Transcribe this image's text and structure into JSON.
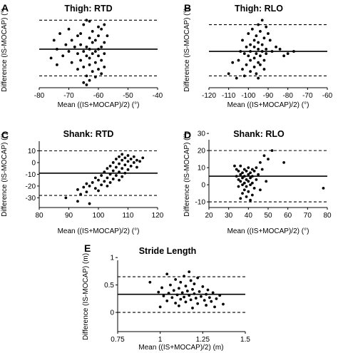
{
  "colors": {
    "points": "#000000",
    "axis": "#000000",
    "mean_line": "#000000",
    "loa_line": "#000000",
    "background": "#ffffff"
  },
  "chart_data": [
    {
      "panel": "A",
      "type": "scatter",
      "title": "Thigh: RTD",
      "xlabel": "Mean ((IS+MOCAP)/2) (°)",
      "ylabel": "Difference (IS-MOCAP) (°)",
      "xlim": [
        -80,
        -40
      ],
      "ylim": [
        -13.3,
        20.3
      ],
      "x_ticks": [
        "-80",
        "-70",
        "-60",
        "-50",
        "-40"
      ],
      "x_tick_values": [
        -80,
        -70,
        -60,
        -50,
        -40
      ],
      "y_ticks": [],
      "y_tick_values": [],
      "mean_line": 4,
      "loa_upper": 17,
      "loa_lower": -8,
      "points": [
        [
          -64,
          17
        ],
        [
          -63,
          16.5
        ],
        [
          -65,
          15
        ],
        [
          -58,
          15
        ],
        [
          -60,
          14
        ],
        [
          -70,
          13
        ],
        [
          -59,
          13
        ],
        [
          -62,
          12
        ],
        [
          -66,
          11
        ],
        [
          -73,
          11
        ],
        [
          -60,
          10
        ],
        [
          -57,
          10
        ],
        [
          -67,
          10
        ],
        [
          -63,
          9
        ],
        [
          -61,
          8
        ],
        [
          -69,
          8
        ],
        [
          -75,
          8
        ],
        [
          -58,
          7
        ],
        [
          -62,
          7
        ],
        [
          -66,
          6
        ],
        [
          -71,
          6
        ],
        [
          -64,
          5
        ],
        [
          -59,
          5
        ],
        [
          -68,
          5
        ],
        [
          -60,
          4
        ],
        [
          -63,
          4
        ],
        [
          -74,
          4
        ],
        [
          -61,
          3
        ],
        [
          -65,
          3
        ],
        [
          -70,
          3
        ],
        [
          -58,
          2
        ],
        [
          -62,
          2
        ],
        [
          -67,
          2
        ],
        [
          -72,
          1
        ],
        [
          -60,
          1
        ],
        [
          -64,
          1
        ],
        [
          -76,
          0
        ],
        [
          -63,
          0
        ],
        [
          -59,
          -1
        ],
        [
          -66,
          -1
        ],
        [
          -61,
          -2
        ],
        [
          -69,
          -2
        ],
        [
          -74,
          -3
        ],
        [
          -63,
          -3
        ],
        [
          -58,
          -4
        ],
        [
          -65,
          -4
        ],
        [
          -60,
          -5
        ],
        [
          -67,
          -5
        ],
        [
          -62,
          -6
        ],
        [
          -59,
          -7
        ],
        [
          -64,
          -8
        ],
        [
          -61,
          -8.5
        ],
        [
          -63,
          -10
        ],
        [
          -65,
          -11
        ],
        [
          -64,
          -12
        ]
      ]
    },
    {
      "panel": "B",
      "type": "scatter",
      "title": "Thigh: RLO",
      "xlabel": "Mean ((IS+MOCAP)/2) (°)",
      "ylabel": "Difference (IS-MOCAP) (°)",
      "xlim": [
        -120,
        -60
      ],
      "ylim": [
        -13.3,
        20.3
      ],
      "x_ticks": [
        "-120",
        "-110",
        "-100",
        "-90",
        "-80",
        "-70",
        "-60"
      ],
      "x_tick_values": [
        -120,
        -110,
        -100,
        -90,
        -80,
        -70,
        -60
      ],
      "y_ticks": [],
      "y_tick_values": [],
      "mean_line": 3,
      "loa_upper": 15,
      "loa_lower": -8,
      "points": [
        [
          -93,
          17
        ],
        [
          -95,
          15
        ],
        [
          -91,
          14
        ],
        [
          -98,
          13
        ],
        [
          -94,
          12
        ],
        [
          -100,
          11
        ],
        [
          -90,
          11
        ],
        [
          -96,
          10
        ],
        [
          -92,
          9
        ],
        [
          -103,
          8
        ],
        [
          -97,
          8
        ],
        [
          -89,
          8
        ],
        [
          -95,
          7
        ],
        [
          -99,
          6
        ],
        [
          -93,
          6
        ],
        [
          -86,
          5
        ],
        [
          -101,
          5
        ],
        [
          -97,
          5
        ],
        [
          -91,
          4
        ],
        [
          -95,
          4
        ],
        [
          -104,
          3
        ],
        [
          -99,
          3
        ],
        [
          -93,
          3
        ],
        [
          -88,
          3
        ],
        [
          -96,
          2
        ],
        [
          -102,
          2
        ],
        [
          -91,
          2
        ],
        [
          -100,
          1
        ],
        [
          -94,
          1
        ],
        [
          -97,
          0
        ],
        [
          -105,
          -1
        ],
        [
          -92,
          -1
        ],
        [
          -99,
          -1
        ],
        [
          -95,
          -2
        ],
        [
          -108,
          -2
        ],
        [
          -101,
          -3
        ],
        [
          -94,
          -3
        ],
        [
          -97,
          -4
        ],
        [
          -103,
          -5
        ],
        [
          -92,
          -5
        ],
        [
          -99,
          -6
        ],
        [
          -110,
          -7
        ],
        [
          -96,
          -7
        ],
        [
          -102,
          -8
        ],
        [
          -106,
          -9
        ],
        [
          -95,
          -9
        ],
        [
          -80,
          2
        ],
        [
          -77,
          3
        ],
        [
          -82,
          1
        ],
        [
          -84,
          4
        ]
      ]
    },
    {
      "panel": "C",
      "type": "scatter",
      "title": "Shank: RTD",
      "xlabel": "Mean ((IS+MOCAP)/2) (°)",
      "ylabel": "Difference (IS-MOCAP) (°)",
      "xlim": [
        80,
        120
      ],
      "ylim": [
        -38.3,
        18.2
      ],
      "x_ticks": [
        "80",
        "90",
        "100",
        "110",
        "120"
      ],
      "x_tick_values": [
        80,
        90,
        100,
        110,
        120
      ],
      "y_ticks": [
        "10",
        "0",
        "-10",
        "-20",
        "-30"
      ],
      "y_tick_values": [
        10,
        0,
        -10,
        -20,
        -30
      ],
      "mean_line": -9,
      "loa_upper": 10,
      "loa_lower": -28,
      "points": [
        [
          108,
          7
        ],
        [
          110,
          6
        ],
        [
          107,
          5
        ],
        [
          112,
          5
        ],
        [
          109,
          4
        ],
        [
          111,
          3
        ],
        [
          106,
          3
        ],
        [
          113,
          2
        ],
        [
          108,
          2
        ],
        [
          110,
          1
        ],
        [
          105,
          0
        ],
        [
          112,
          0
        ],
        [
          107,
          -1
        ],
        [
          109,
          -2
        ],
        [
          104,
          -3
        ],
        [
          111,
          -3
        ],
        [
          106,
          -4
        ],
        [
          108,
          -5
        ],
        [
          103,
          -5
        ],
        [
          110,
          -6
        ],
        [
          105,
          -7
        ],
        [
          107,
          -8
        ],
        [
          102,
          -8
        ],
        [
          109,
          -9
        ],
        [
          104,
          -10
        ],
        [
          106,
          -11
        ],
        [
          101,
          -11
        ],
        [
          108,
          -12
        ],
        [
          103,
          -13
        ],
        [
          99,
          -13
        ],
        [
          105,
          -14
        ],
        [
          100,
          -15
        ],
        [
          107,
          -15
        ],
        [
          102,
          -16
        ],
        [
          98,
          -17
        ],
        [
          104,
          -17
        ],
        [
          96,
          -18
        ],
        [
          101,
          -19
        ],
        [
          97,
          -20
        ],
        [
          103,
          -20
        ],
        [
          95,
          -21
        ],
        [
          99,
          -22
        ],
        [
          93,
          -23
        ],
        [
          100,
          -24
        ],
        [
          96,
          -25
        ],
        [
          94,
          -27
        ],
        [
          89,
          -30
        ],
        [
          93,
          -33
        ],
        [
          97,
          -35
        ],
        [
          115,
          4
        ],
        [
          114,
          1
        ],
        [
          113,
          -4
        ]
      ]
    },
    {
      "panel": "D",
      "type": "scatter",
      "title": "Shank: RLO",
      "xlabel": "Mean ((IS+MOCAP)/2) (°)",
      "ylabel": "Difference (IS-MOCAP) (°)",
      "xlim": [
        20,
        80
      ],
      "ylim": [
        -13.3,
        26.3
      ],
      "x_ticks": [
        "20",
        "30",
        "40",
        "50",
        "60",
        "70",
        "80"
      ],
      "x_tick_values": [
        20,
        30,
        40,
        50,
        60,
        70,
        80
      ],
      "y_ticks": [
        "30",
        "20",
        "10",
        "0",
        "-10"
      ],
      "y_tick_values": [
        30,
        20,
        10,
        0,
        -10
      ],
      "mean_line": 5,
      "loa_upper": 20,
      "loa_lower": -10,
      "points": [
        [
          52,
          20
        ],
        [
          48,
          17
        ],
        [
          50,
          15
        ],
        [
          46,
          13
        ],
        [
          58,
          13
        ],
        [
          33,
          11
        ],
        [
          36,
          11
        ],
        [
          40,
          10
        ],
        [
          44,
          10
        ],
        [
          34,
          9
        ],
        [
          38,
          9
        ],
        [
          42,
          9
        ],
        [
          47,
          9
        ],
        [
          35,
          8
        ],
        [
          39,
          8
        ],
        [
          43,
          8
        ],
        [
          37,
          7
        ],
        [
          41,
          7
        ],
        [
          36,
          6
        ],
        [
          40,
          6
        ],
        [
          45,
          6
        ],
        [
          34,
          5
        ],
        [
          38,
          5
        ],
        [
          42,
          5
        ],
        [
          37,
          4
        ],
        [
          41,
          4
        ],
        [
          35,
          3
        ],
        [
          39,
          3
        ],
        [
          44,
          3
        ],
        [
          36,
          2
        ],
        [
          40,
          2
        ],
        [
          38,
          1
        ],
        [
          42,
          1
        ],
        [
          37,
          0
        ],
        [
          41,
          0
        ],
        [
          35,
          -1
        ],
        [
          39,
          -1
        ],
        [
          43,
          -2
        ],
        [
          38,
          -3
        ],
        [
          40,
          -4
        ],
        [
          37,
          -5
        ],
        [
          42,
          -6
        ],
        [
          39,
          -7
        ],
        [
          36,
          -8
        ],
        [
          41,
          -9
        ],
        [
          49,
          2
        ],
        [
          46,
          -3
        ],
        [
          78,
          -2
        ]
      ]
    },
    {
      "panel": "E",
      "type": "scatter",
      "title": "Stride Length",
      "xlabel": "Mean ((IS+MOCAP)/2) (m)",
      "ylabel": "Difference (IS-MOCAP) (m)",
      "xlim": [
        0.75,
        1.5
      ],
      "ylim": [
        -0.35,
        0.95
      ],
      "x_ticks": [
        "0.75",
        "1",
        "1.25",
        "1.5"
      ],
      "x_tick_values": [
        0.75,
        1,
        1.25,
        1.5
      ],
      "y_ticks": [
        "1",
        "0.5",
        "0"
      ],
      "y_tick_values": [
        1,
        0.5,
        0
      ],
      "mean_line": 0.33,
      "loa_upper": 0.65,
      "loa_lower": 0.0,
      "points": [
        [
          1.17,
          0.74
        ],
        [
          1.04,
          0.7
        ],
        [
          1.14,
          0.66
        ],
        [
          1.22,
          0.63
        ],
        [
          1.09,
          0.6
        ],
        [
          1.18,
          0.58
        ],
        [
          0.94,
          0.55
        ],
        [
          1.12,
          0.55
        ],
        [
          1.2,
          0.52
        ],
        [
          1.06,
          0.5
        ],
        [
          1.15,
          0.48
        ],
        [
          1.25,
          0.47
        ],
        [
          1.01,
          0.45
        ],
        [
          1.11,
          0.44
        ],
        [
          1.19,
          0.42
        ],
        [
          1.28,
          0.41
        ],
        [
          1.08,
          0.4
        ],
        [
          1.16,
          0.39
        ],
        [
          1.23,
          0.38
        ],
        [
          0.99,
          0.37
        ],
        [
          1.13,
          0.36
        ],
        [
          1.31,
          0.36
        ],
        [
          1.05,
          0.35
        ],
        [
          1.2,
          0.34
        ],
        [
          1.27,
          0.33
        ],
        [
          1.1,
          0.32
        ],
        [
          1.17,
          0.31
        ],
        [
          1.35,
          0.31
        ],
        [
          1.02,
          0.3
        ],
        [
          1.24,
          0.29
        ],
        [
          1.14,
          0.28
        ],
        [
          1.29,
          0.27
        ],
        [
          1.07,
          0.27
        ],
        [
          1.21,
          0.26
        ],
        [
          1.33,
          0.25
        ],
        [
          1.12,
          0.24
        ],
        [
          1.18,
          0.23
        ],
        [
          1.26,
          0.22
        ],
        [
          1.04,
          0.21
        ],
        [
          1.3,
          0.2
        ],
        [
          1.15,
          0.19
        ],
        [
          1.09,
          0.17
        ],
        [
          1.22,
          0.16
        ],
        [
          1.37,
          0.15
        ],
        [
          1.27,
          0.13
        ],
        [
          1.11,
          0.12
        ],
        [
          1.32,
          0.1
        ],
        [
          1.19,
          0.08
        ],
        [
          1.0,
          0.1
        ]
      ]
    }
  ]
}
